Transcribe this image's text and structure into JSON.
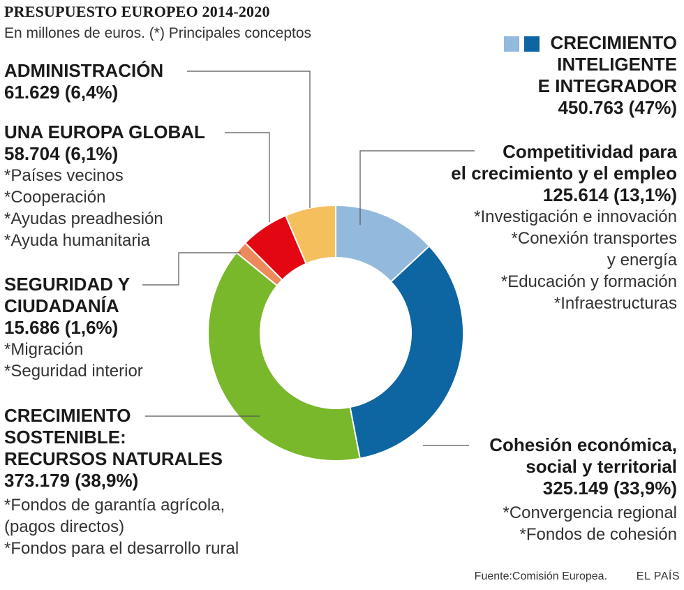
{
  "title": "PRESUPUESTO EUROPEO 2014-2020",
  "subtitle": "En millones de euros. (*) Principales conceptos",
  "legend": {
    "lines": [
      "CRECIMIENTO",
      "INTELIGENTE",
      "E INTEGRADOR"
    ],
    "value": "450.763 (47%)",
    "colors": [
      "#93b9dc",
      "#0d66a2"
    ]
  },
  "labels": {
    "administracion": {
      "title": "ADMINISTRACIÓN",
      "value": "61.629 (6,4%)"
    },
    "global": {
      "title": "UNA EUROPA GLOBAL",
      "value": "58.704 (6,1%)",
      "items": [
        "*Países vecinos",
        "*Cooperación",
        "*Ayudas preadhesión",
        "*Ayuda humanitaria"
      ]
    },
    "seguridad": {
      "lines": [
        "SEGURIDAD Y",
        "CIUDADANÍA"
      ],
      "value": "15.686 (1,6%)",
      "items": [
        "*Migración",
        "*Seguridad interior"
      ]
    },
    "sostenible": {
      "lines": [
        "CRECIMIENTO",
        "SOSTENIBLE:",
        "RECURSOS NATURALES"
      ],
      "value": "373.179 (38,9%)",
      "items": [
        "*Fondos de garantía agrícola,",
        "(pagos directos)",
        "*Fondos para el desarrollo rural"
      ]
    },
    "competitividad": {
      "lines": [
        "Competitividad para",
        "el crecimiento y el empleo"
      ],
      "value": "125.614 (13,1%)",
      "items": [
        "*Investigación e innovación",
        "*Conexión transportes",
        "y energía",
        "*Educación y formación",
        "*Infraestructuras"
      ]
    },
    "cohesion": {
      "lines": [
        "Cohesión económica,",
        "social y territorial"
      ],
      "value": "325.149 (33,9%)",
      "items": [
        "*Convergencia regional",
        "*Fondos de cohesión"
      ]
    }
  },
  "source": "Fuente:Comisión Europea.",
  "brand": "EL PAÍS",
  "chart_data": {
    "type": "pie",
    "style": "donut",
    "unit": "millones de euros",
    "start": "top, clockwise",
    "slices": [
      {
        "label": "Competitividad para el crecimiento y el empleo",
        "value": 125614,
        "percent": 13.1,
        "color": "#93b9dc"
      },
      {
        "label": "Cohesión económica, social y territorial",
        "value": 325149,
        "percent": 33.9,
        "color": "#0d66a2"
      },
      {
        "label": "CRECIMIENTO SOSTENIBLE: RECURSOS NATURALES",
        "value": 373179,
        "percent": 38.9,
        "color": "#78b82a"
      },
      {
        "label": "SEGURIDAD Y CIUDADANÍA",
        "value": 15686,
        "percent": 1.6,
        "color": "#ec8a5c"
      },
      {
        "label": "UNA EUROPA GLOBAL",
        "value": 58704,
        "percent": 6.1,
        "color": "#e30613"
      },
      {
        "label": "ADMINISTRACIÓN",
        "value": 61629,
        "percent": 6.4,
        "color": "#f6bf5e"
      }
    ]
  }
}
